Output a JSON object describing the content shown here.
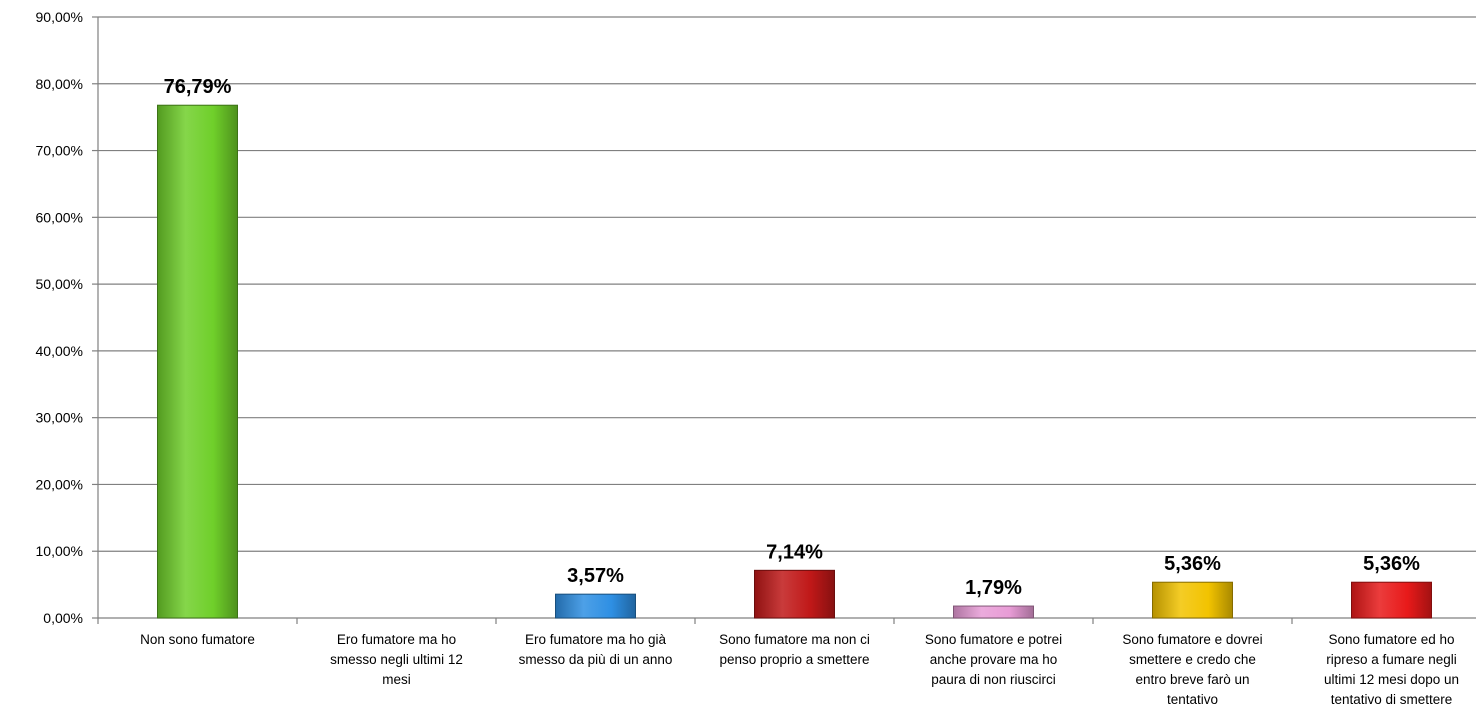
{
  "chart_data": {
    "type": "bar",
    "title": "",
    "xlabel": "",
    "ylabel": "",
    "ylim": [
      0,
      90
    ],
    "yticks": [
      "0,00%",
      "10,00%",
      "20,00%",
      "30,00%",
      "40,00%",
      "50,00%",
      "60,00%",
      "70,00%",
      "80,00%",
      "90,00%"
    ],
    "grid": true,
    "legend": "none",
    "categories": [
      [
        "Non sono fumatore"
      ],
      [
        "Ero fumatore ma ho",
        "smesso negli ultimi 12",
        "mesi"
      ],
      [
        "Ero fumatore ma ho già",
        "smesso da più di un anno"
      ],
      [
        "Sono fumatore ma non ci",
        "penso proprio a smettere"
      ],
      [
        "Sono fumatore  e potrei",
        "anche provare ma ho",
        "paura di non riuscirci"
      ],
      [
        "Sono fumatore e dovrei",
        "smettere e credo che",
        "entro breve farò un",
        "tentativo"
      ],
      [
        "Sono fumatore ed ho",
        "ripreso a fumare negli",
        "ultimi 12 mesi dopo un",
        "tentativo di smettere"
      ]
    ],
    "values": [
      76.79,
      0,
      3.57,
      7.14,
      1.79,
      5.36,
      5.36
    ],
    "data_labels": [
      "76,79%",
      "",
      "3,57%",
      "7,14%",
      "1,79%",
      "5,36%",
      "5,36%"
    ],
    "colors": [
      "#6FCF2A",
      "#6FCF2A",
      "#2E8FE3",
      "#C01818",
      "#E89CD6",
      "#F2C300",
      "#E81A1A"
    ]
  }
}
